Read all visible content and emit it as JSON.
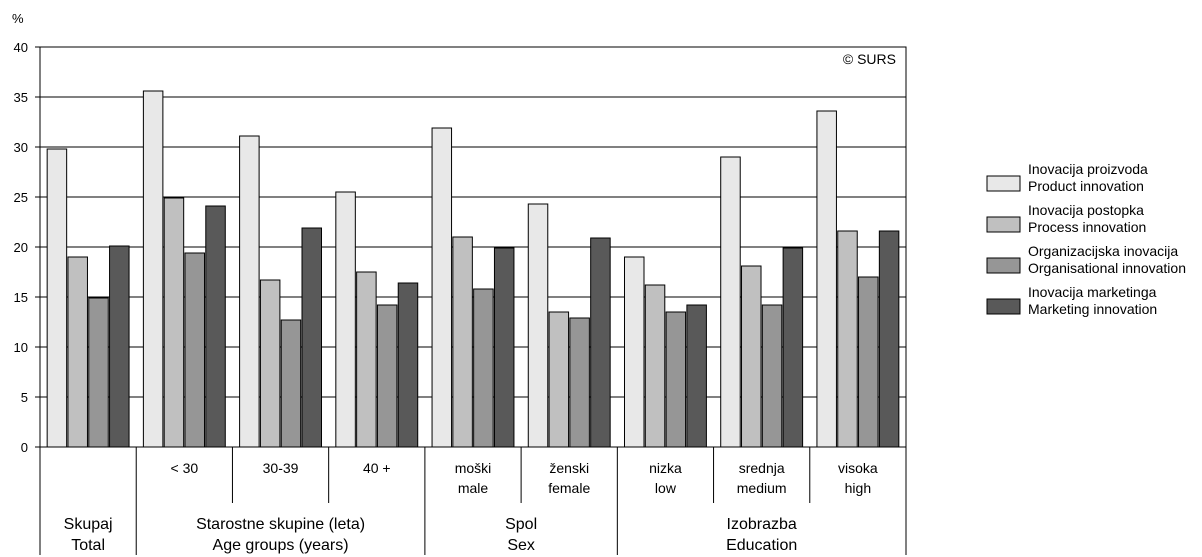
{
  "chart_data": {
    "type": "bar",
    "unit_label": "%",
    "copyright": "© SURS",
    "ylim": [
      0,
      40
    ],
    "yticks": [
      0,
      5,
      10,
      15,
      20,
      25,
      30,
      35,
      40
    ],
    "grid": true,
    "legend_position": "right",
    "categories": [
      {
        "line1": "",
        "line2": ""
      },
      {
        "line1": "< 30",
        "line2": ""
      },
      {
        "line1": "30-39",
        "line2": ""
      },
      {
        "line1": "40 +",
        "line2": ""
      },
      {
        "line1": "moški",
        "line2": "male"
      },
      {
        "line1": "ženski",
        "line2": "female"
      },
      {
        "line1": "nizka",
        "line2": "low"
      },
      {
        "line1": "srednja",
        "line2": "medium"
      },
      {
        "line1": "visoka",
        "line2": "high"
      }
    ],
    "groups": [
      {
        "line1": "Skupaj",
        "line2": "Total",
        "start": 0,
        "end": 0
      },
      {
        "line1": "Starostne skupine (leta)",
        "line2": "Age groups (years)",
        "start": 1,
        "end": 3
      },
      {
        "line1": "Spol",
        "line2": "Sex",
        "start": 4,
        "end": 5
      },
      {
        "line1": "Izobrazba",
        "line2": "Education",
        "start": 6,
        "end": 8
      }
    ],
    "series": [
      {
        "name": "Inovacija proizvoda",
        "name2": "Product innovation",
        "color": "#e8e8e8",
        "values": [
          29.8,
          35.6,
          31.1,
          25.5,
          31.9,
          24.3,
          19.0,
          29.0,
          33.6
        ]
      },
      {
        "name": "Inovacija postopka",
        "name2": "Process innovation",
        "color": "#c0c0c0",
        "values": [
          19.0,
          24.9,
          16.7,
          17.5,
          21.0,
          13.5,
          16.2,
          18.1,
          21.6
        ]
      },
      {
        "name": "Organizacijska inovacija",
        "name2": "Organisational innovation",
        "color": "#969696",
        "values": [
          14.9,
          19.4,
          12.7,
          14.2,
          15.8,
          12.9,
          13.5,
          14.2,
          17.0
        ]
      },
      {
        "name": "Inovacija marketinga",
        "name2": "Marketing innovation",
        "color": "#595959",
        "values": [
          20.1,
          24.1,
          21.9,
          16.4,
          19.9,
          20.9,
          14.2,
          19.9,
          21.6
        ]
      }
    ]
  }
}
